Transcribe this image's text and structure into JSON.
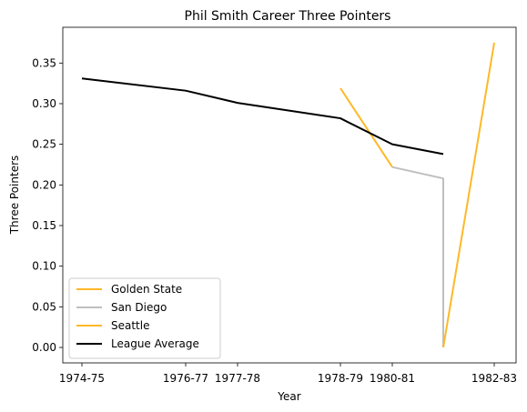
{
  "chart_data": {
    "type": "line",
    "title": "Phil Smith  Career Three Pointers",
    "xlabel": "Year",
    "ylabel": "Three Pointers",
    "x_ticks": [
      "1974-75",
      "1976-77",
      "1977-78",
      "1978-79",
      "1980-81",
      "1982-83"
    ],
    "ylim": [
      -0.019,
      0.394
    ],
    "y_ticks": [
      0.0,
      0.05,
      0.1,
      0.15,
      0.2,
      0.25,
      0.3,
      0.35
    ],
    "grid": false,
    "legend_position": "lower left",
    "series": [
      {
        "name": "Golden State",
        "color": "#FDB927",
        "points": [
          {
            "x": "1979-80",
            "y": 0.319
          },
          {
            "x": "1980-81",
            "y": 0.222
          }
        ]
      },
      {
        "name": "San Diego",
        "color": "#BFBFBF",
        "points": [
          {
            "x": "1980-81",
            "y": 0.222
          },
          {
            "x": "1981-82",
            "y": 0.208
          },
          {
            "x": "1981-82",
            "y": 0.0
          }
        ]
      },
      {
        "name": "Seattle",
        "color": "#FDB927",
        "points": [
          {
            "x": "1981-82",
            "y": 0.0
          },
          {
            "x": "1982-83",
            "y": 0.375
          }
        ]
      },
      {
        "name": "League Average",
        "color": "#000000",
        "points": [
          {
            "x": "1974-75",
            "y": 0.331
          },
          {
            "x": "1976-77",
            "y": 0.316
          },
          {
            "x": "1977-78",
            "y": 0.301
          },
          {
            "x": "1978-79",
            "y": 0.282
          },
          {
            "x": "1979-80",
            "y": 0.282
          },
          {
            "x": "1980-81",
            "y": 0.25
          },
          {
            "x": "1981-82",
            "y": 0.238
          }
        ]
      }
    ]
  }
}
